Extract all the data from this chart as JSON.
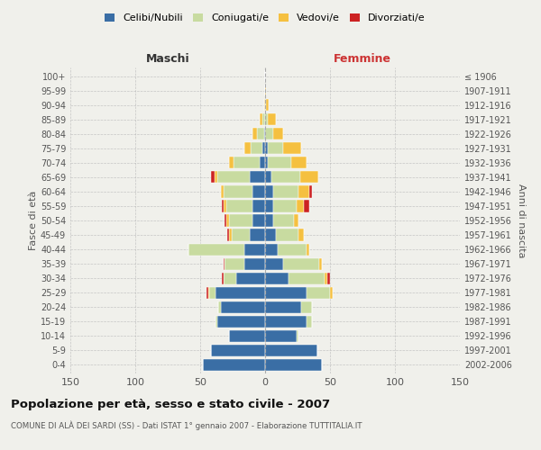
{
  "age_groups": [
    "0-4",
    "5-9",
    "10-14",
    "15-19",
    "20-24",
    "25-29",
    "30-34",
    "35-39",
    "40-44",
    "45-49",
    "50-54",
    "55-59",
    "60-64",
    "65-69",
    "70-74",
    "75-79",
    "80-84",
    "85-89",
    "90-94",
    "95-99",
    "100+"
  ],
  "birth_years": [
    "2002-2006",
    "1997-2001",
    "1992-1996",
    "1987-1991",
    "1982-1986",
    "1977-1981",
    "1972-1976",
    "1967-1971",
    "1962-1966",
    "1957-1961",
    "1952-1956",
    "1947-1951",
    "1942-1946",
    "1937-1941",
    "1932-1936",
    "1927-1931",
    "1922-1926",
    "1917-1921",
    "1912-1916",
    "1907-1911",
    "≤ 1906"
  ],
  "colors": {
    "celibi": "#3a6ea5",
    "coniugati": "#c8dba0",
    "vedovi": "#f5c040",
    "divorziati": "#cc2222"
  },
  "males": {
    "celibi": [
      48,
      42,
      28,
      37,
      34,
      38,
      22,
      16,
      16,
      12,
      10,
      10,
      10,
      12,
      4,
      2,
      1,
      0,
      0,
      0,
      0
    ],
    "coniugati": [
      0,
      0,
      0,
      1,
      2,
      5,
      10,
      15,
      43,
      14,
      18,
      20,
      22,
      25,
      20,
      9,
      5,
      2,
      0,
      0,
      0
    ],
    "vedovi": [
      0,
      0,
      0,
      0,
      0,
      1,
      0,
      0,
      0,
      2,
      2,
      2,
      2,
      2,
      4,
      5,
      4,
      2,
      1,
      0,
      0
    ],
    "divorziati": [
      0,
      0,
      0,
      0,
      0,
      1,
      1,
      1,
      0,
      1,
      1,
      1,
      0,
      3,
      0,
      0,
      0,
      0,
      0,
      0,
      0
    ]
  },
  "females": {
    "nubili": [
      44,
      40,
      24,
      32,
      28,
      32,
      18,
      14,
      10,
      8,
      6,
      6,
      6,
      5,
      2,
      2,
      0,
      0,
      0,
      0,
      0
    ],
    "coniugate": [
      0,
      0,
      2,
      4,
      8,
      18,
      28,
      28,
      22,
      18,
      16,
      18,
      20,
      22,
      18,
      12,
      6,
      2,
      1,
      0,
      0
    ],
    "vedove": [
      0,
      0,
      0,
      0,
      0,
      2,
      2,
      2,
      2,
      4,
      4,
      6,
      8,
      14,
      12,
      14,
      8,
      6,
      2,
      1,
      0
    ],
    "divorziate": [
      0,
      0,
      0,
      0,
      0,
      0,
      2,
      0,
      0,
      0,
      0,
      4,
      2,
      0,
      0,
      0,
      0,
      0,
      0,
      0,
      0
    ]
  },
  "title": "Popolazione per età, sesso e stato civile - 2007",
  "subtitle": "COMUNE DI ALÀ DEI SARDI (SS) - Dati ISTAT 1° gennaio 2007 - Elaborazione TUTTITALIA.IT",
  "xlabel_left": "Maschi",
  "xlabel_right": "Femmine",
  "ylabel_left": "Fasce di età",
  "ylabel_right": "Anni di nascita",
  "xlim": 150,
  "legend_labels": [
    "Celibi/Nubili",
    "Coniugati/e",
    "Vedovi/e",
    "Divorziati/e"
  ],
  "bg_color": "#f0f0eb",
  "grid_color": "#bbbbbb"
}
